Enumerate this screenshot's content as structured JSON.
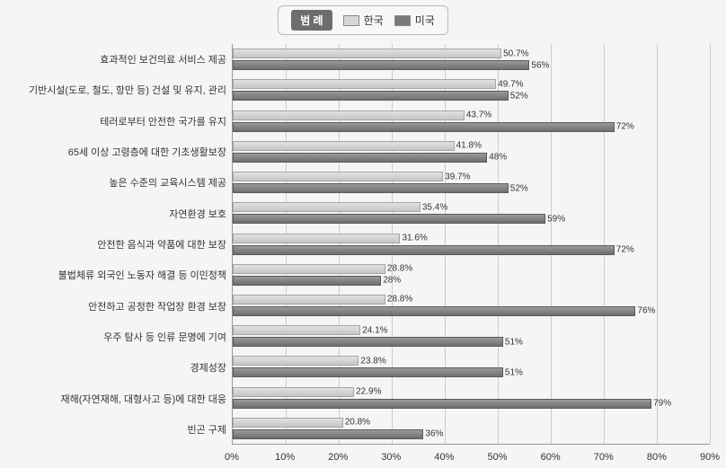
{
  "chart": {
    "type": "grouped-horizontal-bar",
    "legend_label": "범 례",
    "series": [
      {
        "key": "k",
        "label": "한국",
        "swatch": "#d6d6d6"
      },
      {
        "key": "u",
        "label": "미국",
        "swatch": "#7a7a7a"
      }
    ],
    "xaxis": {
      "min": 0,
      "max": 90,
      "step": 10,
      "suffix": "%"
    },
    "colors": {
      "background": "#f5f5f5",
      "grid": "#cccccc",
      "bar_k_top": "#e2e2e2",
      "bar_k_bot": "#c5c5c5",
      "bar_u_top": "#9a9a9a",
      "bar_u_bot": "#6f6f6f",
      "axis": "#999999",
      "text": "#333333"
    },
    "fontsize": {
      "label": 11,
      "value": 10,
      "legend": 12,
      "tick": 11
    },
    "categories": [
      {
        "label": "효과적인 보건의료 서비스 제공",
        "k": 50.7,
        "u": 56
      },
      {
        "label": "기반시설(도로, 철도, 항만 등) 건설 및 유지, 관리",
        "k": 49.7,
        "u": 52
      },
      {
        "label": "테러로부터 안전한 국가를 유지",
        "k": 43.7,
        "u": 72
      },
      {
        "label": "65세 이상 고령층에 대한 기초생활보장",
        "k": 41.8,
        "u": 48
      },
      {
        "label": "높은 수준의 교육시스템 제공",
        "k": 39.7,
        "u": 52
      },
      {
        "label": "자연환경 보호",
        "k": 35.4,
        "u": 59
      },
      {
        "label": "안전한 음식과 약품에 대한 보장",
        "k": 31.6,
        "u": 72
      },
      {
        "label": "불법체류 외국인 노동자 해결 등 이민정책",
        "k": 28.8,
        "u": 28
      },
      {
        "label": "안전하고 공정한 작업장 환경 보장",
        "k": 28.8,
        "u": 76
      },
      {
        "label": "우주 탐사 등 인류 문명에 기여",
        "k": 24.1,
        "u": 51
      },
      {
        "label": "경제성장",
        "k": 23.8,
        "u": 51
      },
      {
        "label": "재해(자연재해, 대형사고 등)에 대한 대응",
        "k": 22.9,
        "u": 79
      },
      {
        "label": "빈곤 구제",
        "k": 20.8,
        "u": 36
      }
    ]
  }
}
